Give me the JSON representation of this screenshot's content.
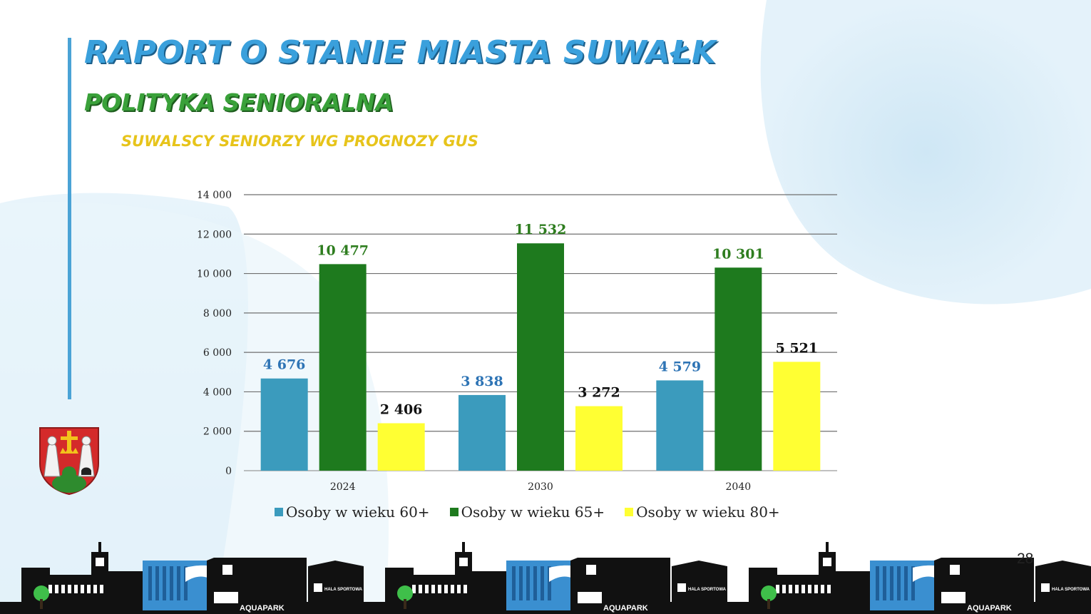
{
  "header": {
    "title": "RAPORT O STANIE MIASTA SUWAŁK",
    "subtitle": "POLITYKA SENIORALNA",
    "section_label": "SUWALSCY SENIORZY WG PROGNOZY GUS"
  },
  "page_number": "28",
  "footer": {
    "skyline_labels": [
      "AQUAPARK",
      "HALA SPORTOWA"
    ]
  },
  "colors": {
    "title": "#3aa0dc",
    "subtitle": "#3aa13a",
    "section_label": "#e7c41b",
    "series_60": "#3b9bbd",
    "series_65": "#1e7a1e",
    "series_80": "#ffff33"
  },
  "chart_data": {
    "type": "bar",
    "title": "",
    "xlabel": "",
    "ylabel": "",
    "categories": [
      "2024",
      "2030",
      "2040"
    ],
    "ylim": [
      0,
      14000
    ],
    "y_ticks": [
      "0",
      "2 000",
      "4 000",
      "6 000",
      "8 000",
      "10 000",
      "12 000",
      "14 000"
    ],
    "grid": true,
    "legend_position": "bottom",
    "series": [
      {
        "name": "Osoby w wieku 60+",
        "values": [
          4676,
          3838,
          4579
        ],
        "labels": [
          "4 676",
          "3 838",
          "4 579"
        ],
        "color": "#3b9bbd",
        "label_color": "#2e74b5"
      },
      {
        "name": "Osoby w wieku 65+",
        "values": [
          10477,
          11532,
          10301
        ],
        "labels": [
          "10 477",
          "11 532",
          "10 301"
        ],
        "color": "#1e7a1e",
        "label_color": "#2e7d1f"
      },
      {
        "name": "Osoby w wieku 80+",
        "values": [
          2406,
          3272,
          5521
        ],
        "labels": [
          "2 406",
          "3 272",
          "5 521"
        ],
        "color": "#ffff33",
        "label_color": "#111111"
      }
    ]
  }
}
